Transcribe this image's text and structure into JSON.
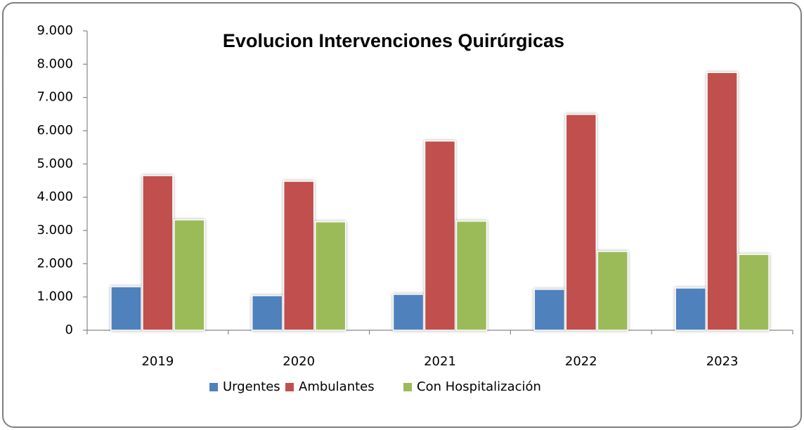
{
  "chart_data": {
    "type": "bar",
    "title": "Evolucion Intervenciones Quirúrgicas",
    "categories": [
      "2019",
      "2020",
      "2021",
      "2022",
      "2023"
    ],
    "series": [
      {
        "name": "Urgentes",
        "color": "#4f81bd",
        "values": [
          1310,
          1040,
          1080,
          1230,
          1270
        ]
      },
      {
        "name": "Ambulantes",
        "color": "#c0504d",
        "values": [
          4650,
          4480,
          5690,
          6490,
          7750
        ]
      },
      {
        "name": "Con Hospitalización",
        "color": "#9bbb59",
        "values": [
          3320,
          3260,
          3280,
          2370,
          2280
        ]
      }
    ],
    "ylim": [
      0,
      9000
    ],
    "yticks": [
      0,
      {
        "value": 1000,
        "label": "1.000"
      },
      {
        "value": 2000,
        "label": "2.000"
      },
      {
        "value": 3000,
        "label": "3.000"
      },
      {
        "value": 4000,
        "label": "4.000"
      },
      {
        "value": 5000,
        "label": "5.000"
      },
      {
        "value": 6000,
        "label": "6.000"
      },
      {
        "value": 7000,
        "label": "7.000"
      },
      {
        "value": 8000,
        "label": "8.000"
      },
      {
        "value": 9000,
        "label": "9.000"
      }
    ],
    "grid": false,
    "legend": "bottom"
  }
}
